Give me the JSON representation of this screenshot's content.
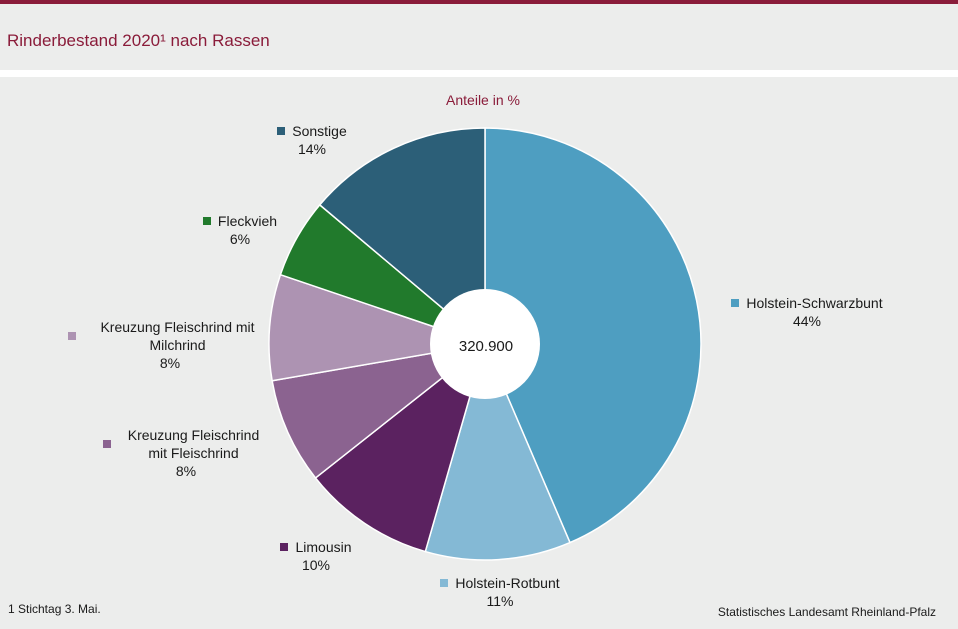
{
  "header": {
    "title": "Rinderbestand 2020¹ nach Rassen"
  },
  "footer": {
    "footnote": "1 Stichtag 3. Mai.",
    "source": "Statistisches Landesamt Rheinland-Pfalz"
  },
  "chart_data": {
    "type": "pie",
    "donut": true,
    "subtitle": "Anteile in %",
    "center_label": "320.900",
    "unit": "%",
    "slices": [
      {
        "name": "Holstein-Schwarzbunt",
        "value": 44,
        "value_label": "44%",
        "color": "#4e9ec1"
      },
      {
        "name": "Holstein-Rotbunt",
        "value": 11,
        "value_label": "11%",
        "color": "#84b9d5"
      },
      {
        "name": "Limousin",
        "value": 10,
        "value_label": "10%",
        "color": "#5b2260"
      },
      {
        "name": "Kreuzung  Fleischrind mit Fleischrind",
        "value": 8,
        "value_label": "8%",
        "color": "#8b6390"
      },
      {
        "name": "Kreuzung  Fleischrind mit Milchrind",
        "value": 8,
        "value_label": "8%",
        "color": "#ad93b2"
      },
      {
        "name": "Fleckvieh",
        "value": 6,
        "value_label": "6%",
        "color": "#217a2c"
      },
      {
        "name": "Sonstige",
        "value": 14,
        "value_label": "14%",
        "color": "#2c5f78"
      }
    ],
    "start_angle": "12 o'clock",
    "direction": "clockwise",
    "legend": "labels beside slices with color squares"
  }
}
